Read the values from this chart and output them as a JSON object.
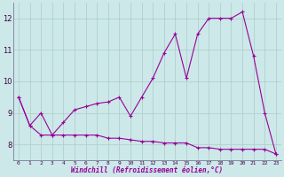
{
  "hours": [
    0,
    1,
    2,
    3,
    4,
    5,
    6,
    7,
    8,
    9,
    10,
    11,
    12,
    13,
    14,
    15,
    16,
    17,
    18,
    19,
    20,
    21,
    22,
    23
  ],
  "temp": [
    9.5,
    8.6,
    9.0,
    8.3,
    8.7,
    9.1,
    9.2,
    9.3,
    9.35,
    9.5,
    8.9,
    9.5,
    10.1,
    10.9,
    11.5,
    10.1,
    11.5,
    12.0,
    12.0,
    12.0,
    12.2,
    10.8,
    9.0,
    7.7
  ],
  "windchill": [
    9.5,
    8.6,
    8.3,
    8.3,
    8.3,
    8.3,
    8.3,
    8.3,
    8.2,
    8.2,
    8.15,
    8.1,
    8.1,
    8.05,
    8.05,
    8.05,
    7.9,
    7.9,
    7.85,
    7.85,
    7.85,
    7.85,
    7.85,
    7.7
  ],
  "line_color": "#990099",
  "bg_color": "#cce8e8",
  "grid_color": "#aacccc",
  "xlabel": "Windchill (Refroidissement éolien,°C)",
  "ylim": [
    7.5,
    12.5
  ],
  "xlim": [
    -0.5,
    23.5
  ],
  "yticks": [
    8,
    9,
    10,
    11,
    12
  ],
  "xticks": [
    0,
    1,
    2,
    3,
    4,
    5,
    6,
    7,
    8,
    9,
    10,
    11,
    12,
    13,
    14,
    15,
    16,
    17,
    18,
    19,
    20,
    21,
    22,
    23
  ]
}
